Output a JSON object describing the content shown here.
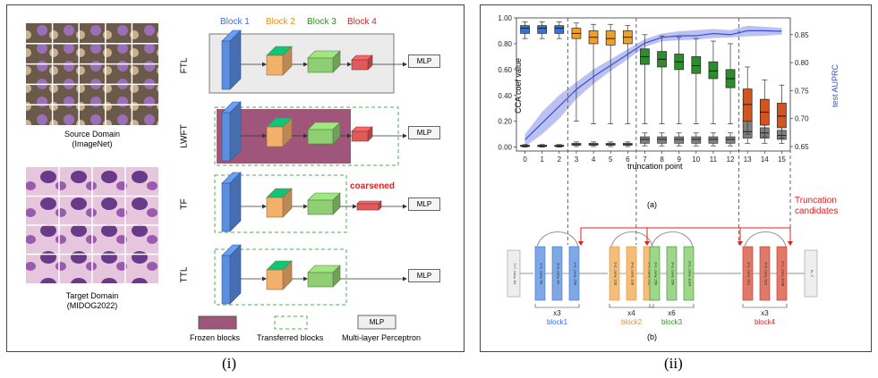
{
  "panel_i": {
    "label": "(i)",
    "source_domain": {
      "title": "Source Domain",
      "subtitle": "(ImageNet)"
    },
    "target_domain": {
      "title": "Target Domain",
      "subtitle": "(MIDOG2022)"
    },
    "block_headers": [
      {
        "label": "Block 1",
        "color": "#3a6fd8"
      },
      {
        "label": "Block 2",
        "color": "#e8901d"
      },
      {
        "label": "Block 3",
        "color": "#3a8a2a"
      },
      {
        "label": "Block 4",
        "color": "#c62828"
      }
    ],
    "rows": [
      {
        "name": "FTL",
        "mlp": "MLP"
      },
      {
        "name": "LWFT",
        "mlp": "MLP"
      },
      {
        "name": "TF",
        "mlp": "MLP",
        "note": "coarsened"
      },
      {
        "name": "TTL",
        "mlp": "MLP"
      }
    ],
    "legend": {
      "frozen": "Frozen blocks",
      "transferred": "Transferred blocks",
      "mlp_box": "MLP",
      "mlp": "Multi-layer Perceptron"
    },
    "colors": {
      "frozen": "#a0567a",
      "block1": "#5b8ee0",
      "block2": "#f2b06a",
      "block3": "#8fce72",
      "block4": "#e05a5a",
      "ftl_bg": "#ebebeb"
    }
  },
  "panel_ii": {
    "label": "(ii)",
    "sub_a": "(a)",
    "sub_b": "(b)",
    "truncation_note": [
      "Truncation",
      "candidates"
    ],
    "stages": [
      {
        "name": "block1",
        "repeat": "x3",
        "color": "#3a6fd8",
        "layer_labels": [
          "1×1, conv, 64",
          "3×3, conv, 64",
          "1×1, conv, 256"
        ]
      },
      {
        "name": "block2",
        "repeat": "x4",
        "color": "#e8901d",
        "layer_labels": [
          "1×1, conv, 128",
          "3×3, conv, 128",
          "1×1, conv, 512"
        ]
      },
      {
        "name": "block3",
        "repeat": "x6",
        "color": "#3a8a2a",
        "layer_labels": [
          "1×1, conv, 256",
          "3×3, conv, 256",
          "1×1, conv, 1024"
        ]
      },
      {
        "name": "block4",
        "repeat": "x3",
        "color": "#c62828",
        "layer_labels": [
          "1×1, conv, 512",
          "3×3, conv, 512",
          "1×1, conv, 2048"
        ]
      }
    ],
    "input_layer": "7×7, conv, 64",
    "output_layer": "fc, 2"
  },
  "chart_data": {
    "type": "box+line",
    "xlabel": "truncation point",
    "ylabel": "CCA coef value",
    "y2label": "test AUPRC",
    "x": [
      0,
      1,
      2,
      3,
      4,
      5,
      6,
      7,
      8,
      9,
      10,
      11,
      12,
      13,
      14,
      15
    ],
    "xlim": [
      -0.5,
      15.5
    ],
    "ylim": [
      -0.03,
      1.0
    ],
    "y_ticks": [
      0.0,
      0.2,
      0.4,
      0.6,
      0.8,
      1.0
    ],
    "y2lim": [
      0.642,
      0.88
    ],
    "y2_ticks": [
      0.65,
      0.7,
      0.75,
      0.8,
      0.85
    ],
    "dashed_vlines_at_x": [
      2.5,
      6.5,
      12.5,
      15.5
    ],
    "upper_boxes": [
      {
        "x": 0,
        "q1": 0.88,
        "median": 0.92,
        "q3": 0.94,
        "whislo": 0.84,
        "whishi": 0.97,
        "color": "#3d72c4"
      },
      {
        "x": 1,
        "q1": 0.88,
        "median": 0.92,
        "q3": 0.94,
        "whislo": 0.84,
        "whishi": 0.97,
        "color": "#3d72c4"
      },
      {
        "x": 2,
        "q1": 0.88,
        "median": 0.92,
        "q3": 0.94,
        "whislo": 0.84,
        "whishi": 0.97,
        "color": "#3d72c4"
      },
      {
        "x": 3,
        "q1": 0.84,
        "median": 0.88,
        "q3": 0.92,
        "whislo": 0.2,
        "whishi": 0.96,
        "color": "#f0a028"
      },
      {
        "x": 4,
        "q1": 0.8,
        "median": 0.85,
        "q3": 0.9,
        "whislo": 0.18,
        "whishi": 0.95,
        "color": "#f0a028"
      },
      {
        "x": 5,
        "q1": 0.79,
        "median": 0.84,
        "q3": 0.9,
        "whislo": 0.18,
        "whishi": 0.95,
        "color": "#f0a028"
      },
      {
        "x": 6,
        "q1": 0.8,
        "median": 0.85,
        "q3": 0.9,
        "whislo": 0.18,
        "whishi": 0.94,
        "color": "#f0a028"
      },
      {
        "x": 7,
        "q1": 0.64,
        "median": 0.7,
        "q3": 0.76,
        "whislo": 0.18,
        "whishi": 0.87,
        "color": "#2e8b2e"
      },
      {
        "x": 8,
        "q1": 0.62,
        "median": 0.68,
        "q3": 0.74,
        "whislo": 0.18,
        "whishi": 0.86,
        "color": "#2e8b2e"
      },
      {
        "x": 9,
        "q1": 0.6,
        "median": 0.66,
        "q3": 0.72,
        "whislo": 0.18,
        "whishi": 0.85,
        "color": "#2e8b2e"
      },
      {
        "x": 10,
        "q1": 0.57,
        "median": 0.63,
        "q3": 0.7,
        "whislo": 0.18,
        "whishi": 0.84,
        "color": "#2e8b2e"
      },
      {
        "x": 11,
        "q1": 0.53,
        "median": 0.59,
        "q3": 0.66,
        "whislo": 0.18,
        "whishi": 0.82,
        "color": "#2e8b2e"
      },
      {
        "x": 12,
        "q1": 0.46,
        "median": 0.53,
        "q3": 0.6,
        "whislo": 0.18,
        "whishi": 0.8,
        "color": "#2e8b2e"
      },
      {
        "x": 13,
        "q1": 0.2,
        "median": 0.33,
        "q3": 0.45,
        "whislo": 0.1,
        "whishi": 0.62,
        "color": "#d2541e"
      },
      {
        "x": 14,
        "q1": 0.17,
        "median": 0.27,
        "q3": 0.37,
        "whislo": 0.08,
        "whishi": 0.52,
        "color": "#d2541e"
      },
      {
        "x": 15,
        "q1": 0.15,
        "median": 0.24,
        "q3": 0.34,
        "whislo": 0.07,
        "whishi": 0.48,
        "color": "#d2541e"
      }
    ],
    "lower_boxes": [
      {
        "x": 0,
        "q1": 0.005,
        "median": 0.01,
        "q3": 0.015,
        "whislo": 0.0,
        "whishi": 0.02
      },
      {
        "x": 1,
        "q1": 0.005,
        "median": 0.01,
        "q3": 0.015,
        "whislo": 0.0,
        "whishi": 0.02
      },
      {
        "x": 2,
        "q1": 0.005,
        "median": 0.01,
        "q3": 0.015,
        "whislo": 0.0,
        "whishi": 0.02
      },
      {
        "x": 3,
        "q1": 0.015,
        "median": 0.02,
        "q3": 0.03,
        "whislo": 0.005,
        "whishi": 0.04
      },
      {
        "x": 4,
        "q1": 0.015,
        "median": 0.02,
        "q3": 0.03,
        "whislo": 0.005,
        "whishi": 0.04
      },
      {
        "x": 5,
        "q1": 0.015,
        "median": 0.02,
        "q3": 0.03,
        "whislo": 0.005,
        "whishi": 0.04
      },
      {
        "x": 6,
        "q1": 0.015,
        "median": 0.02,
        "q3": 0.03,
        "whislo": 0.005,
        "whishi": 0.04
      },
      {
        "x": 7,
        "q1": 0.03,
        "median": 0.06,
        "q3": 0.08,
        "whislo": 0.01,
        "whishi": 0.11
      },
      {
        "x": 8,
        "q1": 0.03,
        "median": 0.06,
        "q3": 0.08,
        "whislo": 0.01,
        "whishi": 0.11
      },
      {
        "x": 9,
        "q1": 0.03,
        "median": 0.06,
        "q3": 0.08,
        "whislo": 0.01,
        "whishi": 0.11
      },
      {
        "x": 10,
        "q1": 0.03,
        "median": 0.06,
        "q3": 0.08,
        "whislo": 0.01,
        "whishi": 0.11
      },
      {
        "x": 11,
        "q1": 0.03,
        "median": 0.06,
        "q3": 0.08,
        "whislo": 0.01,
        "whishi": 0.11
      },
      {
        "x": 12,
        "q1": 0.03,
        "median": 0.06,
        "q3": 0.08,
        "whislo": 0.01,
        "whishi": 0.11
      },
      {
        "x": 13,
        "q1": 0.07,
        "median": 0.12,
        "q3": 0.21,
        "whislo": 0.03,
        "whishi": 0.24
      },
      {
        "x": 14,
        "q1": 0.07,
        "median": 0.11,
        "q3": 0.15,
        "whislo": 0.03,
        "whishi": 0.19
      },
      {
        "x": 15,
        "q1": 0.06,
        "median": 0.09,
        "q3": 0.13,
        "whislo": 0.03,
        "whishi": 0.17
      }
    ],
    "auprc_series": {
      "color": "#3b4fd6",
      "mean": [
        0.662,
        0.692,
        0.722,
        0.752,
        0.775,
        0.795,
        0.815,
        0.835,
        0.845,
        0.848,
        0.848,
        0.852,
        0.85,
        0.857,
        0.857,
        0.856
      ],
      "lower": [
        0.65,
        0.672,
        0.7,
        0.735,
        0.762,
        0.785,
        0.806,
        0.828,
        0.838,
        0.84,
        0.841,
        0.844,
        0.845,
        0.847,
        0.848,
        0.85
      ],
      "upper": [
        0.672,
        0.712,
        0.742,
        0.765,
        0.788,
        0.806,
        0.824,
        0.842,
        0.852,
        0.856,
        0.858,
        0.86,
        0.858,
        0.866,
        0.864,
        0.862
      ]
    }
  }
}
